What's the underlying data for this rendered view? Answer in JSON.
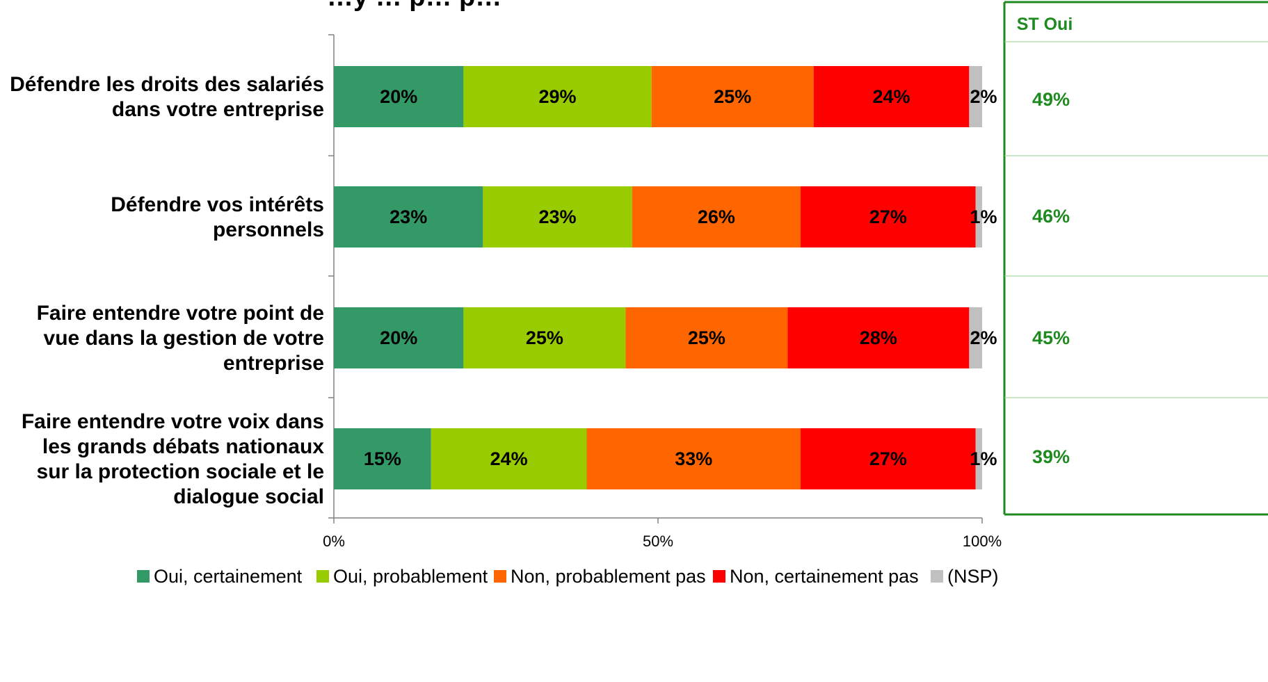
{
  "chart_data": {
    "type": "bar",
    "orientation": "horizontal",
    "stacked": true,
    "title_partial": "…y … p… p…",
    "categories": [
      [
        "Défendre les droits des salariés",
        "dans votre entreprise"
      ],
      [
        "Défendre vos intérêts",
        "personnels"
      ],
      [
        "Faire entendre votre point de",
        "vue dans la gestion de votre",
        "entreprise"
      ],
      [
        "Faire entendre votre voix dans",
        "les grands débats nationaux",
        "sur la protection sociale et le",
        "dialogue social"
      ]
    ],
    "series": [
      {
        "name": "Oui, certainement",
        "color": "#339966",
        "values": [
          20,
          23,
          20,
          15
        ]
      },
      {
        "name": "Oui, probablement",
        "color": "#99cc00",
        "values": [
          29,
          23,
          25,
          24
        ]
      },
      {
        "name": "Non, probablement pas",
        "color": "#ff6600",
        "values": [
          25,
          26,
          25,
          33
        ]
      },
      {
        "name": "Non, certainement pas",
        "color": "#ff0000",
        "values": [
          24,
          27,
          28,
          27
        ]
      },
      {
        "name": "(NSP)",
        "color": "#c0c0c0",
        "values": [
          2,
          1,
          2,
          1
        ]
      }
    ],
    "xlim": [
      0,
      100
    ],
    "xticks": [
      "0%",
      "50%",
      "100%"
    ],
    "grid": false,
    "legend_position": "bottom",
    "side_table": {
      "title": "ST Oui",
      "values": [
        "49%",
        "46%",
        "45%",
        "39%"
      ],
      "color": "#1f8a1f"
    }
  }
}
